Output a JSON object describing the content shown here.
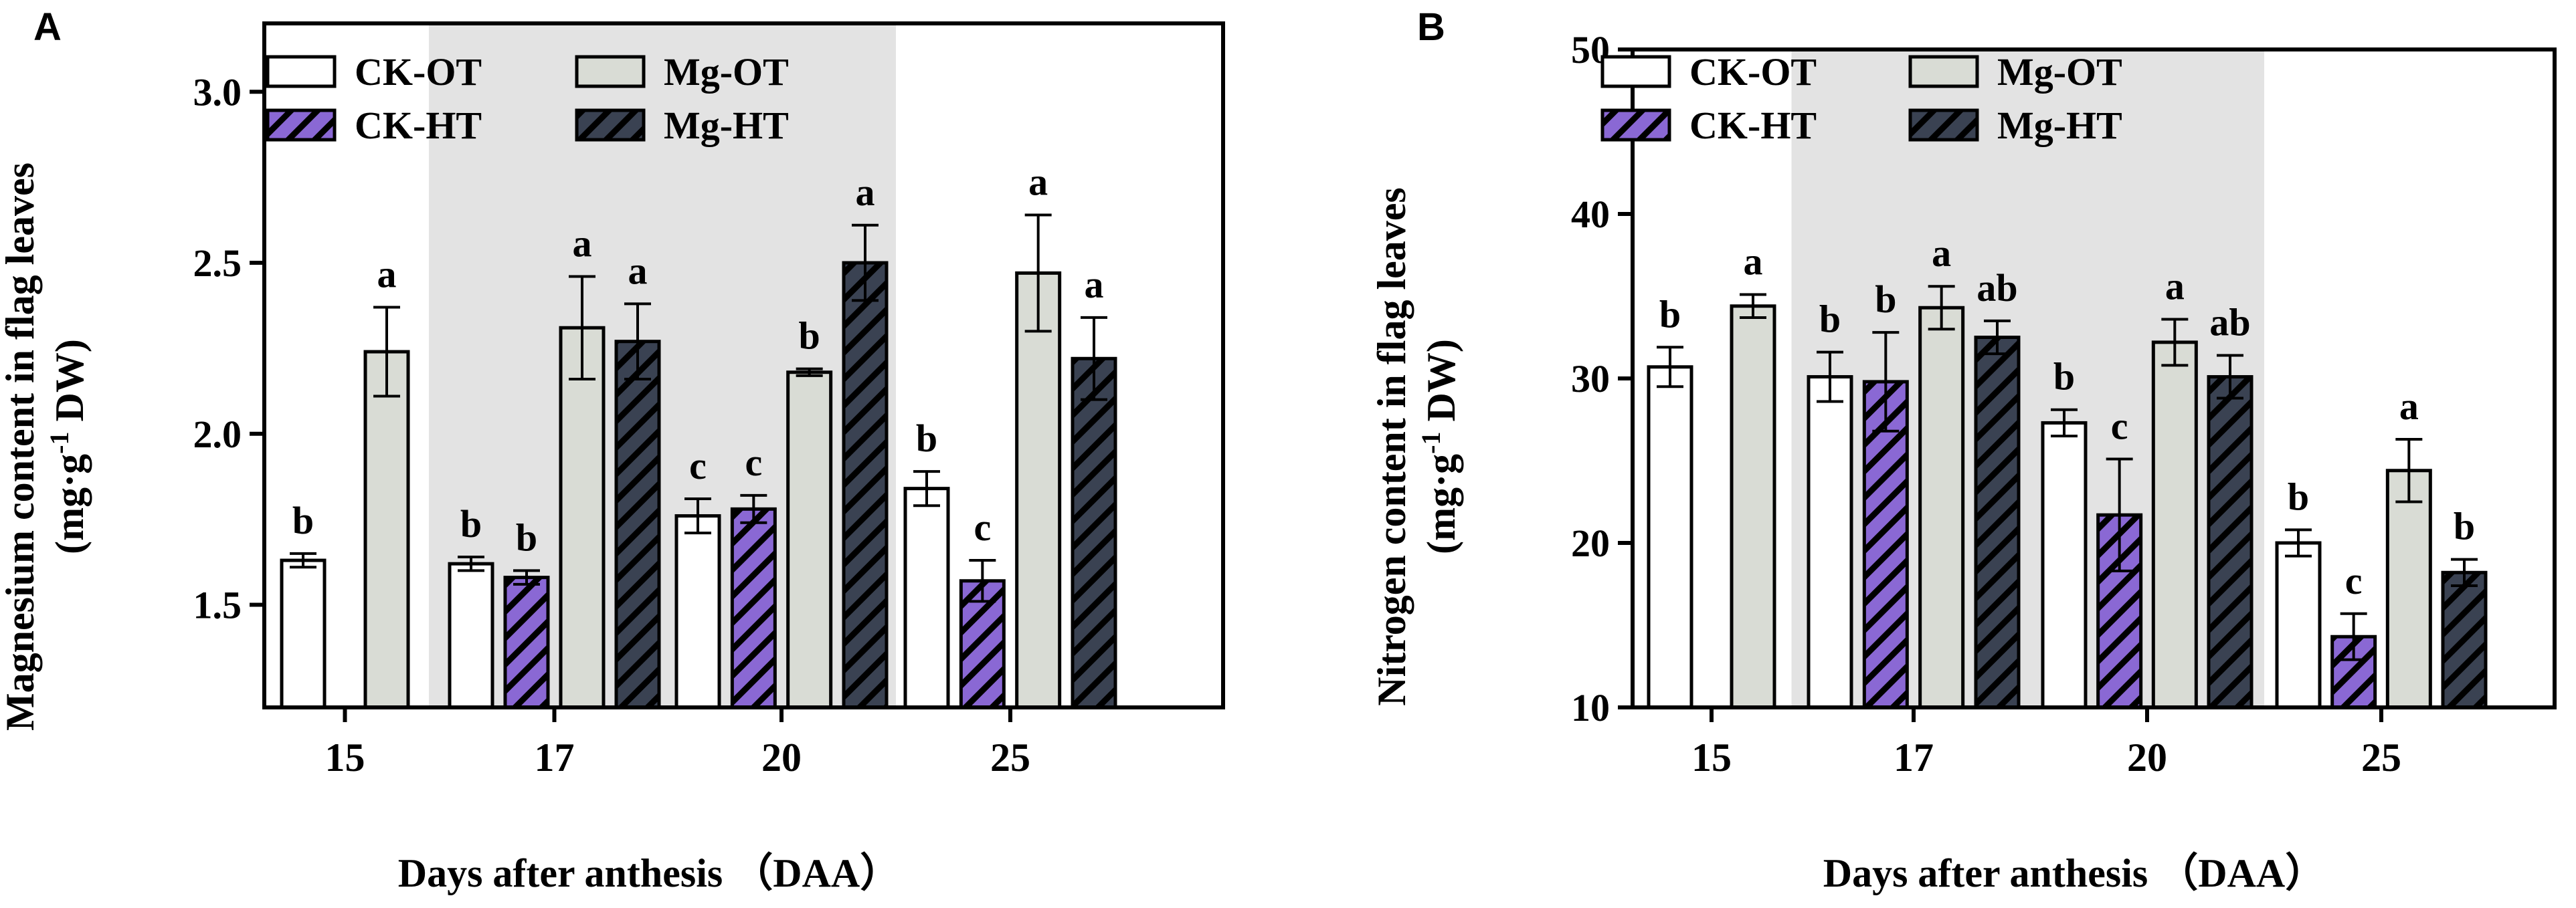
{
  "chart_data": [
    {
      "type": "bar",
      "panel_label": "A",
      "categories": [
        "15",
        "17",
        "20",
        "25"
      ],
      "xlabel": "Days after anthesis （DAA）",
      "ylabel_line1": "Magnesium content in flag leaves",
      "ylabel_line2_prefix": "(mg·g",
      "ylabel_line2_sup": "-1",
      "ylabel_line2_suffix": " DW)",
      "ylim": [
        1.2,
        3.2
      ],
      "yticks": [
        1.5,
        2.0,
        2.5,
        3.0
      ],
      "ytick_labels": [
        "1.5",
        "2.0",
        "2.5",
        "3.0"
      ],
      "shaded_categories": [
        "17",
        "20"
      ],
      "legend_position": "top-left",
      "series": [
        {
          "name": "CK-OT",
          "values": [
            1.63,
            1.62,
            1.76,
            1.84
          ],
          "errors": [
            0.02,
            0.02,
            0.05,
            0.05
          ],
          "letters": [
            "b",
            "b",
            "c",
            "b"
          ]
        },
        {
          "name": "CK-HT",
          "values": [
            null,
            1.58,
            1.78,
            1.57
          ],
          "errors": [
            null,
            0.02,
            0.04,
            0.06
          ],
          "letters": [
            null,
            "b",
            "c",
            "c"
          ]
        },
        {
          "name": "Mg-OT",
          "values": [
            2.24,
            2.31,
            2.18,
            2.47
          ],
          "errors": [
            0.13,
            0.15,
            0.01,
            0.17
          ],
          "letters": [
            "a",
            "a",
            "b",
            "a"
          ]
        },
        {
          "name": "Mg-HT",
          "values": [
            null,
            2.27,
            2.5,
            2.22
          ],
          "errors": [
            null,
            0.11,
            0.11,
            0.12
          ],
          "letters": [
            null,
            "a",
            "a",
            "a"
          ]
        }
      ]
    },
    {
      "type": "bar",
      "panel_label": "B",
      "categories": [
        "15",
        "17",
        "20",
        "25"
      ],
      "xlabel": "Days after anthesis （DAA）",
      "ylabel_line1": "Nitrogen content in flag leaves",
      "ylabel_line2_prefix": "(mg·g",
      "ylabel_line2_sup": "-1",
      "ylabel_line2_suffix": " DW)",
      "ylim": [
        10,
        50
      ],
      "yticks": [
        10,
        20,
        30,
        40,
        50
      ],
      "ytick_labels": [
        "10",
        "20",
        "30",
        "40",
        "50"
      ],
      "shaded_categories": [
        "17",
        "20"
      ],
      "legend_position": "top-left",
      "series": [
        {
          "name": "CK-OT",
          "values": [
            30.7,
            30.1,
            27.3,
            20.0
          ],
          "errors": [
            1.2,
            1.5,
            0.8,
            0.8
          ],
          "letters": [
            "b",
            "b",
            "b",
            "b"
          ]
        },
        {
          "name": "CK-HT",
          "values": [
            null,
            29.8,
            21.7,
            14.3
          ],
          "errors": [
            null,
            3.0,
            3.4,
            1.4
          ],
          "letters": [
            null,
            "b",
            "c",
            "c"
          ]
        },
        {
          "name": "Mg-OT",
          "values": [
            34.4,
            34.3,
            32.2,
            24.4
          ],
          "errors": [
            0.7,
            1.3,
            1.4,
            1.9
          ],
          "letters": [
            "a",
            "a",
            "a",
            "a"
          ]
        },
        {
          "name": "Mg-HT",
          "values": [
            null,
            32.5,
            30.1,
            18.2
          ],
          "errors": [
            null,
            1.0,
            1.3,
            0.8
          ],
          "letters": [
            null,
            "ab",
            "ab",
            "b"
          ]
        }
      ]
    }
  ],
  "styles": {
    "CK-OT": {
      "fill": "#ffffff",
      "hatch": false
    },
    "CK-HT": {
      "fill": "#8a68d4",
      "hatch": true
    },
    "Mg-OT": {
      "fill": "#d9dcd5",
      "hatch": false
    },
    "Mg-HT": {
      "fill": "#3a4252",
      "hatch": true
    },
    "shade": "#e3e3e3",
    "stroke": "#000000"
  }
}
